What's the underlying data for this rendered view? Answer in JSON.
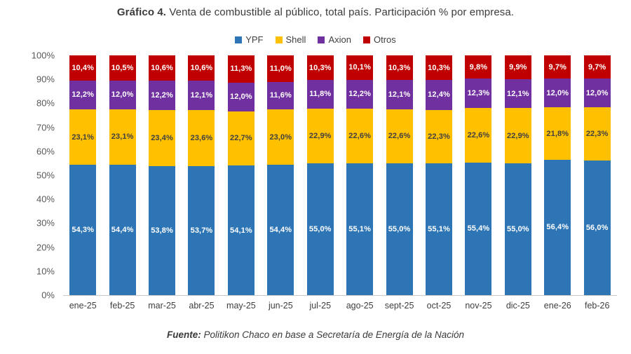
{
  "header": {
    "title_bold": "Gráfico 4.",
    "title_rest": "Venta de combustible al público, total país. Participación % por empresa."
  },
  "footer": {
    "prefix": "Fuente:",
    "text": "Politikon Chaco en base a Secretaría de Energía de la Nación"
  },
  "chart_data": {
    "type": "bar",
    "stacked": true,
    "title": "Gráfico 4. Venta de combustible al público, total país. Participación % por empresa.",
    "xlabel": "",
    "ylabel": "",
    "ylim": [
      0,
      100
    ],
    "grid": false,
    "legend_position": "top",
    "y_ticks": [
      "100%",
      "90%",
      "80%",
      "70%",
      "60%",
      "50%",
      "40%",
      "30%",
      "20%",
      "10%",
      "0%"
    ],
    "categories": [
      "ene-25",
      "feb-25",
      "mar-25",
      "abr-25",
      "may-25",
      "jun-25",
      "jul-25",
      "ago-25",
      "sept-25",
      "oct-25",
      "nov-25",
      "dic-25",
      "ene-26",
      "feb-26"
    ],
    "series": [
      {
        "name": "YPF",
        "color": "#2E75B6",
        "label_color": "#FFFFFF",
        "values": [
          54.3,
          54.4,
          53.8,
          53.7,
          54.1,
          54.4,
          55.0,
          55.1,
          55.0,
          55.1,
          55.4,
          55.0,
          56.4,
          56.0
        ]
      },
      {
        "name": "Shell",
        "color": "#FFC000",
        "label_color": "#404040",
        "values": [
          23.1,
          23.1,
          23.4,
          23.6,
          22.7,
          23.0,
          22.9,
          22.6,
          22.6,
          22.3,
          22.6,
          22.9,
          21.8,
          22.3
        ]
      },
      {
        "name": "Axion",
        "color": "#7030A0",
        "label_color": "#FFFFFF",
        "values": [
          12.2,
          12.0,
          12.2,
          12.1,
          12.0,
          11.6,
          11.8,
          12.2,
          12.1,
          12.4,
          12.3,
          12.1,
          12.0,
          12.0
        ]
      },
      {
        "name": "Otros",
        "color": "#C00000",
        "label_color": "#FFFFFF",
        "values": [
          10.4,
          10.5,
          10.6,
          10.6,
          11.3,
          11.0,
          10.3,
          10.1,
          10.3,
          10.3,
          9.8,
          9.9,
          9.7,
          9.7
        ]
      }
    ],
    "label_format": "decimal-comma-percent"
  }
}
